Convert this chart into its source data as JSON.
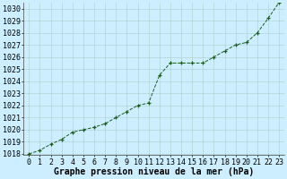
{
  "x": [
    0,
    1,
    2,
    3,
    4,
    5,
    6,
    7,
    8,
    9,
    10,
    11,
    12,
    13,
    14,
    15,
    16,
    17,
    18,
    19,
    20,
    21,
    22,
    23
  ],
  "y": [
    1018.0,
    1018.3,
    1018.8,
    1019.2,
    1019.8,
    1020.0,
    1020.2,
    1020.5,
    1021.0,
    1021.5,
    1022.0,
    1022.2,
    1024.5,
    1025.5,
    1025.5,
    1025.5,
    1025.5,
    1026.0,
    1026.5,
    1027.0,
    1027.2,
    1028.0,
    1029.2,
    1030.5
  ],
  "ylim": [
    1018,
    1030
  ],
  "xlim": [
    -0.5,
    23.5
  ],
  "yticks": [
    1018,
    1019,
    1020,
    1021,
    1022,
    1023,
    1024,
    1025,
    1026,
    1027,
    1028,
    1029,
    1030
  ],
  "xticks": [
    0,
    1,
    2,
    3,
    4,
    5,
    6,
    7,
    8,
    9,
    10,
    11,
    12,
    13,
    14,
    15,
    16,
    17,
    18,
    19,
    20,
    21,
    22,
    23
  ],
  "line_color": "#1a5e1a",
  "marker_color": "#1a5e1a",
  "bg_color": "#cceeff",
  "grid_color": "#aacccc",
  "xlabel": "Graphe pression niveau de la mer (hPa)",
  "xlabel_fontsize": 7,
  "tick_fontsize": 6,
  "figsize": [
    3.2,
    2.0
  ],
  "dpi": 100
}
